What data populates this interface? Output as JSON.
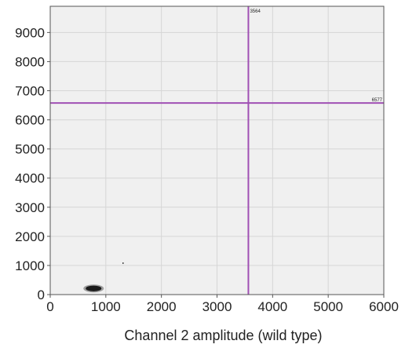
{
  "chart_data": {
    "type": "scatter",
    "title": "",
    "xlabel": "Channel 2 amplitude (wild type)",
    "ylabel": "",
    "xlim": [
      0,
      6000
    ],
    "ylim": [
      0,
      9900
    ],
    "x_ticks": [
      0,
      1000,
      2000,
      3000,
      4000,
      5000,
      6000
    ],
    "y_ticks": [
      0,
      1000,
      2000,
      3000,
      4000,
      5000,
      6000,
      7000,
      8000,
      9000
    ],
    "grid": true,
    "thresholds": {
      "x": {
        "value": 3564,
        "label": "3564"
      },
      "y": {
        "value": 6577,
        "label": "6577"
      }
    },
    "clusters": [
      {
        "name": "",
        "x": 780,
        "y": 210
      }
    ],
    "outliers": [
      {
        "x": 1310,
        "y": 1080
      }
    ],
    "colors": {
      "plot_background": "#f0f0f0",
      "grid": "#d6d6d6",
      "threshold": "#a050b4",
      "droplets": "#1a1a1a"
    }
  }
}
